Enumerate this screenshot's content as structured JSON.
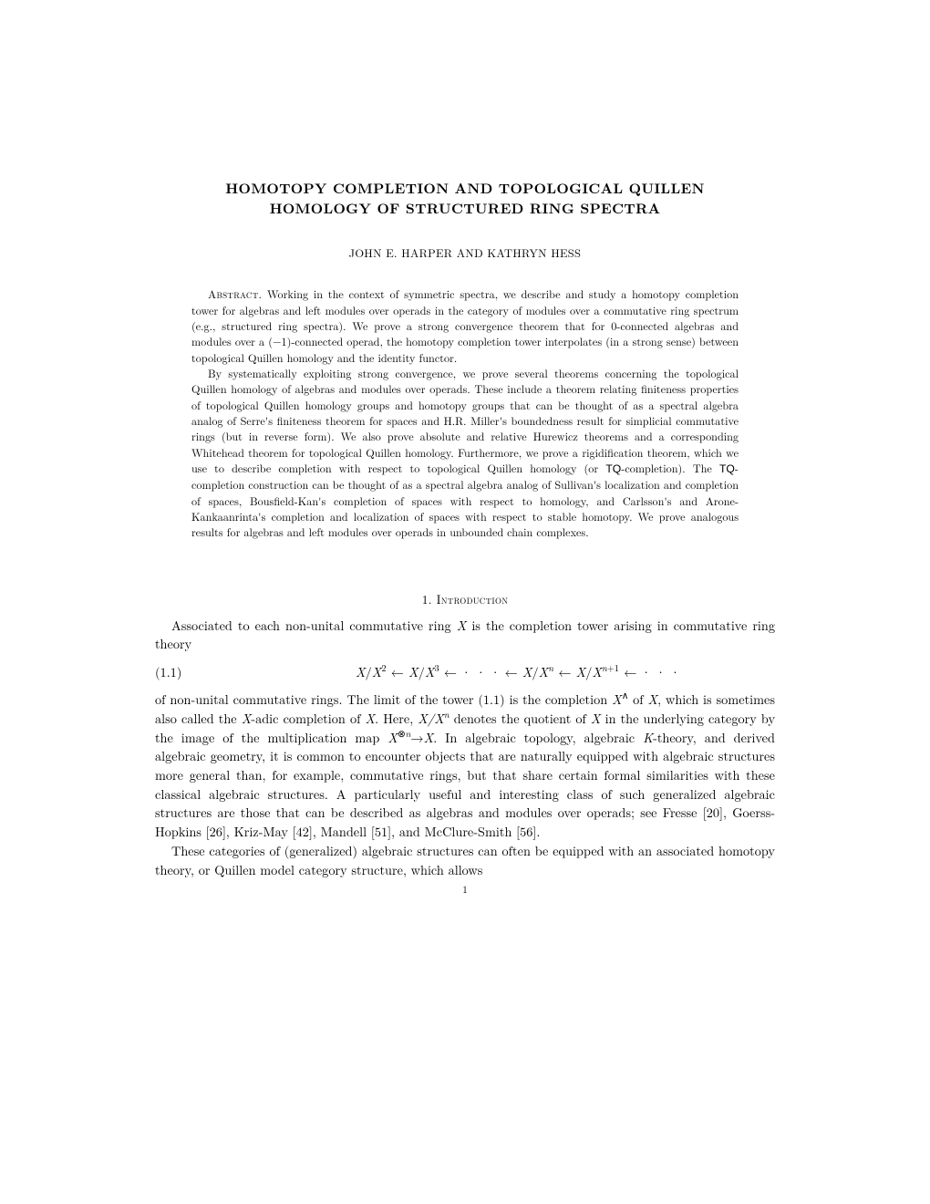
{
  "title_line1": "HOMOTOPY COMPLETION AND TOPOLOGICAL QUILLEN",
  "title_line2": "HOMOLOGY OF STRUCTURED RING SPECTRA",
  "authors": "JOHN E. HARPER AND KATHRYN HESS",
  "abstract_head": "Abstract.",
  "abstract_p1": " Working in the context of symmetric spectra, we describe and study a homotopy completion tower for algebras and left modules over operads in the category of modules over a commutative ring spectrum (e.g., structured ring spectra). We prove a strong convergence theorem that for 0-connected algebras and modules over a (−1)-connected operad, the homotopy completion tower interpolates (in a strong sense) between topological Quillen homology and the identity functor.",
  "abstract_p2a": "By systematically exploiting strong convergence, we prove several theorems concerning the topological Quillen homology of algebras and modules over operads. These include a theorem relating finiteness properties of topological Quillen homology groups and homotopy groups that can be thought of as a spectral algebra analog of Serre's finiteness theorem for spaces and H.R. Miller's boundedness result for simplicial commutative rings (but in reverse form). We also prove absolute and relative Hurewicz theorems and a corresponding Whitehead theorem for topological Quillen homology. Furthermore, we prove a rigidification theorem, which we use to describe completion with respect to topological Quillen homology (or ",
  "tq1": "TQ",
  "abstract_p2b": "-completion). The ",
  "tq2": "TQ",
  "abstract_p2c": "-completion construction can be thought of as a spectral algebra analog of Sullivan's localization and completion of spaces, Bousfield-Kan's completion of spaces with respect to homology, and Carlsson's and Arone-Kankaanrinta's completion and localization of spaces with respect to stable homotopy. We prove analogous results for algebras and left modules over operads in unbounded chain complexes.",
  "section1": "1. Introduction",
  "intro_p1a": "Associated to each non-unital commutative ring ",
  "intro_p1b": " is the completion tower arising in commutative ring theory",
  "eq_num": "(1.1)",
  "intro_p2a": "of non-unital commutative rings. The limit of the tower (1.1) is the completion ",
  "intro_p2b": " of ",
  "intro_p2c": ", which is sometimes also called the ",
  "intro_p2d": "-adic completion of ",
  "intro_p2e": ". Here, ",
  "intro_p2f": " denotes the quotient of ",
  "intro_p2g": " in the underlying category by the image of the multiplication map ",
  "intro_p2h": ". In algebraic topology, algebraic ",
  "intro_p2i": "-theory, and derived algebraic geometry, it is common to encounter objects that are naturally equipped with algebraic structures more general than, for example, commutative rings, but that share certain formal similarities with these classical algebraic structures. A particularly useful and interesting class of such generalized algebraic structures are those that can be described as algebras and modules over operads; see Fresse [20], Goerss-Hopkins [26], Kriz-May [42], Mandell [51], and McClure-Smith [56].",
  "intro_p3": "These categories of (generalized) algebraic structures can often be equipped with an associated homotopy theory, or Quillen model category structure, which allows",
  "page_number": "1",
  "sym_X": "X",
  "sym_K": "K"
}
